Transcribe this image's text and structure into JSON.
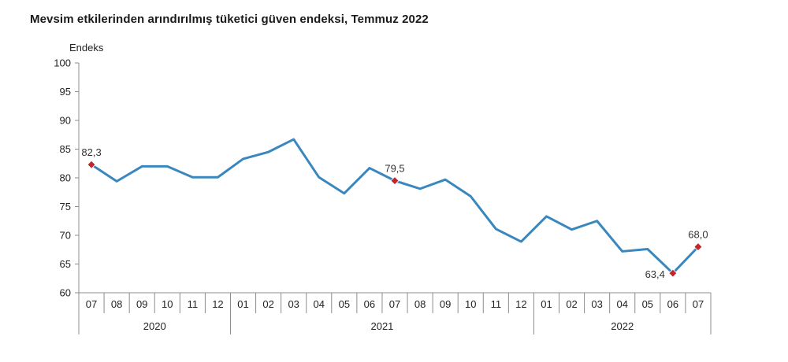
{
  "chart_data": {
    "type": "line",
    "title": "Mevsim etkilerinden arındırılmış tüketici güven endeksi, Temmuz 2022",
    "ylabel": "Endeks",
    "xlabel": "",
    "ylim": [
      60,
      100
    ],
    "yticks": [
      60,
      65,
      70,
      75,
      80,
      85,
      90,
      95,
      100
    ],
    "ytick_labels": [
      "60",
      "65",
      "70",
      "75",
      "80",
      "85",
      "90",
      "95",
      "100"
    ],
    "grid": false,
    "categories": [
      "07",
      "08",
      "09",
      "10",
      "11",
      "12",
      "01",
      "02",
      "03",
      "04",
      "05",
      "06",
      "07",
      "08",
      "09",
      "10",
      "11",
      "12",
      "01",
      "02",
      "03",
      "04",
      "05",
      "06",
      "07"
    ],
    "year_groups": [
      {
        "label": "2020",
        "start": 0,
        "end": 5
      },
      {
        "label": "2021",
        "start": 6,
        "end": 17
      },
      {
        "label": "2022",
        "start": 18,
        "end": 24
      }
    ],
    "series": [
      {
        "name": "Tüketici güven endeksi",
        "color": "#3a87c0",
        "values": [
          82.3,
          79.4,
          82.0,
          82.0,
          80.1,
          80.1,
          83.3,
          84.5,
          86.7,
          80.1,
          77.3,
          81.7,
          79.5,
          78.1,
          79.7,
          76.8,
          71.1,
          68.9,
          73.3,
          71.0,
          72.5,
          67.2,
          67.6,
          63.4,
          68.0
        ]
      }
    ],
    "highlights": [
      {
        "index": 0,
        "label": "82,3",
        "pos": "above"
      },
      {
        "index": 12,
        "label": "79,5",
        "pos": "above"
      },
      {
        "index": 23,
        "label": "63,4",
        "pos": "left"
      },
      {
        "index": 24,
        "label": "68,0",
        "pos": "above"
      }
    ],
    "highlight_color": "#c0272d"
  }
}
